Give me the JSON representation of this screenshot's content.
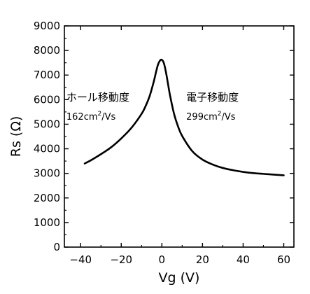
{
  "chart_data": {
    "type": "line",
    "title": "",
    "xlabel": "Vg (V)",
    "ylabel": "Rs (Ω)",
    "xlim": [
      -48,
      65
    ],
    "ylim": [
      0,
      9000
    ],
    "xticks": [
      -40,
      -20,
      0,
      20,
      40,
      60
    ],
    "xtick_labels": [
      "−40",
      "−20",
      "0",
      "20",
      "40",
      "60"
    ],
    "yticks": [
      0,
      1000,
      2000,
      3000,
      4000,
      5000,
      6000,
      7000,
      8000,
      9000
    ],
    "ytick_labels": [
      "0",
      "1000",
      "2000",
      "3000",
      "4000",
      "5000",
      "6000",
      "7000",
      "8000",
      "9000"
    ],
    "grid": false,
    "line_color": "#000000",
    "series": [
      {
        "x": [
          -38,
          -35,
          -30,
          -25,
          -20,
          -15,
          -10,
          -8,
          -6,
          -4,
          -3,
          -2,
          -1,
          0,
          1,
          2,
          3,
          4,
          6,
          8,
          10,
          15,
          20,
          25,
          30,
          35,
          40,
          45,
          50,
          55,
          60
        ],
        "y": [
          3400,
          3530,
          3780,
          4060,
          4420,
          4850,
          5420,
          5740,
          6150,
          6730,
          7080,
          7400,
          7580,
          7620,
          7480,
          7120,
          6650,
          6180,
          5420,
          4900,
          4520,
          3900,
          3560,
          3360,
          3220,
          3130,
          3060,
          3010,
          2980,
          2950,
          2920
        ]
      }
    ],
    "annotations": [
      {
        "id": "hole",
        "title": "ホール移動度",
        "value": "162cm",
        "sup": "2",
        "unit": "/Vs",
        "x": -47,
        "y_title": 5950,
        "y_value": 5180
      },
      {
        "id": "electron",
        "title": "電子移動度",
        "value": "299cm",
        "sup": "2",
        "unit": "/Vs",
        "x": 12,
        "y_title": 5950,
        "y_value": 5180
      }
    ]
  }
}
